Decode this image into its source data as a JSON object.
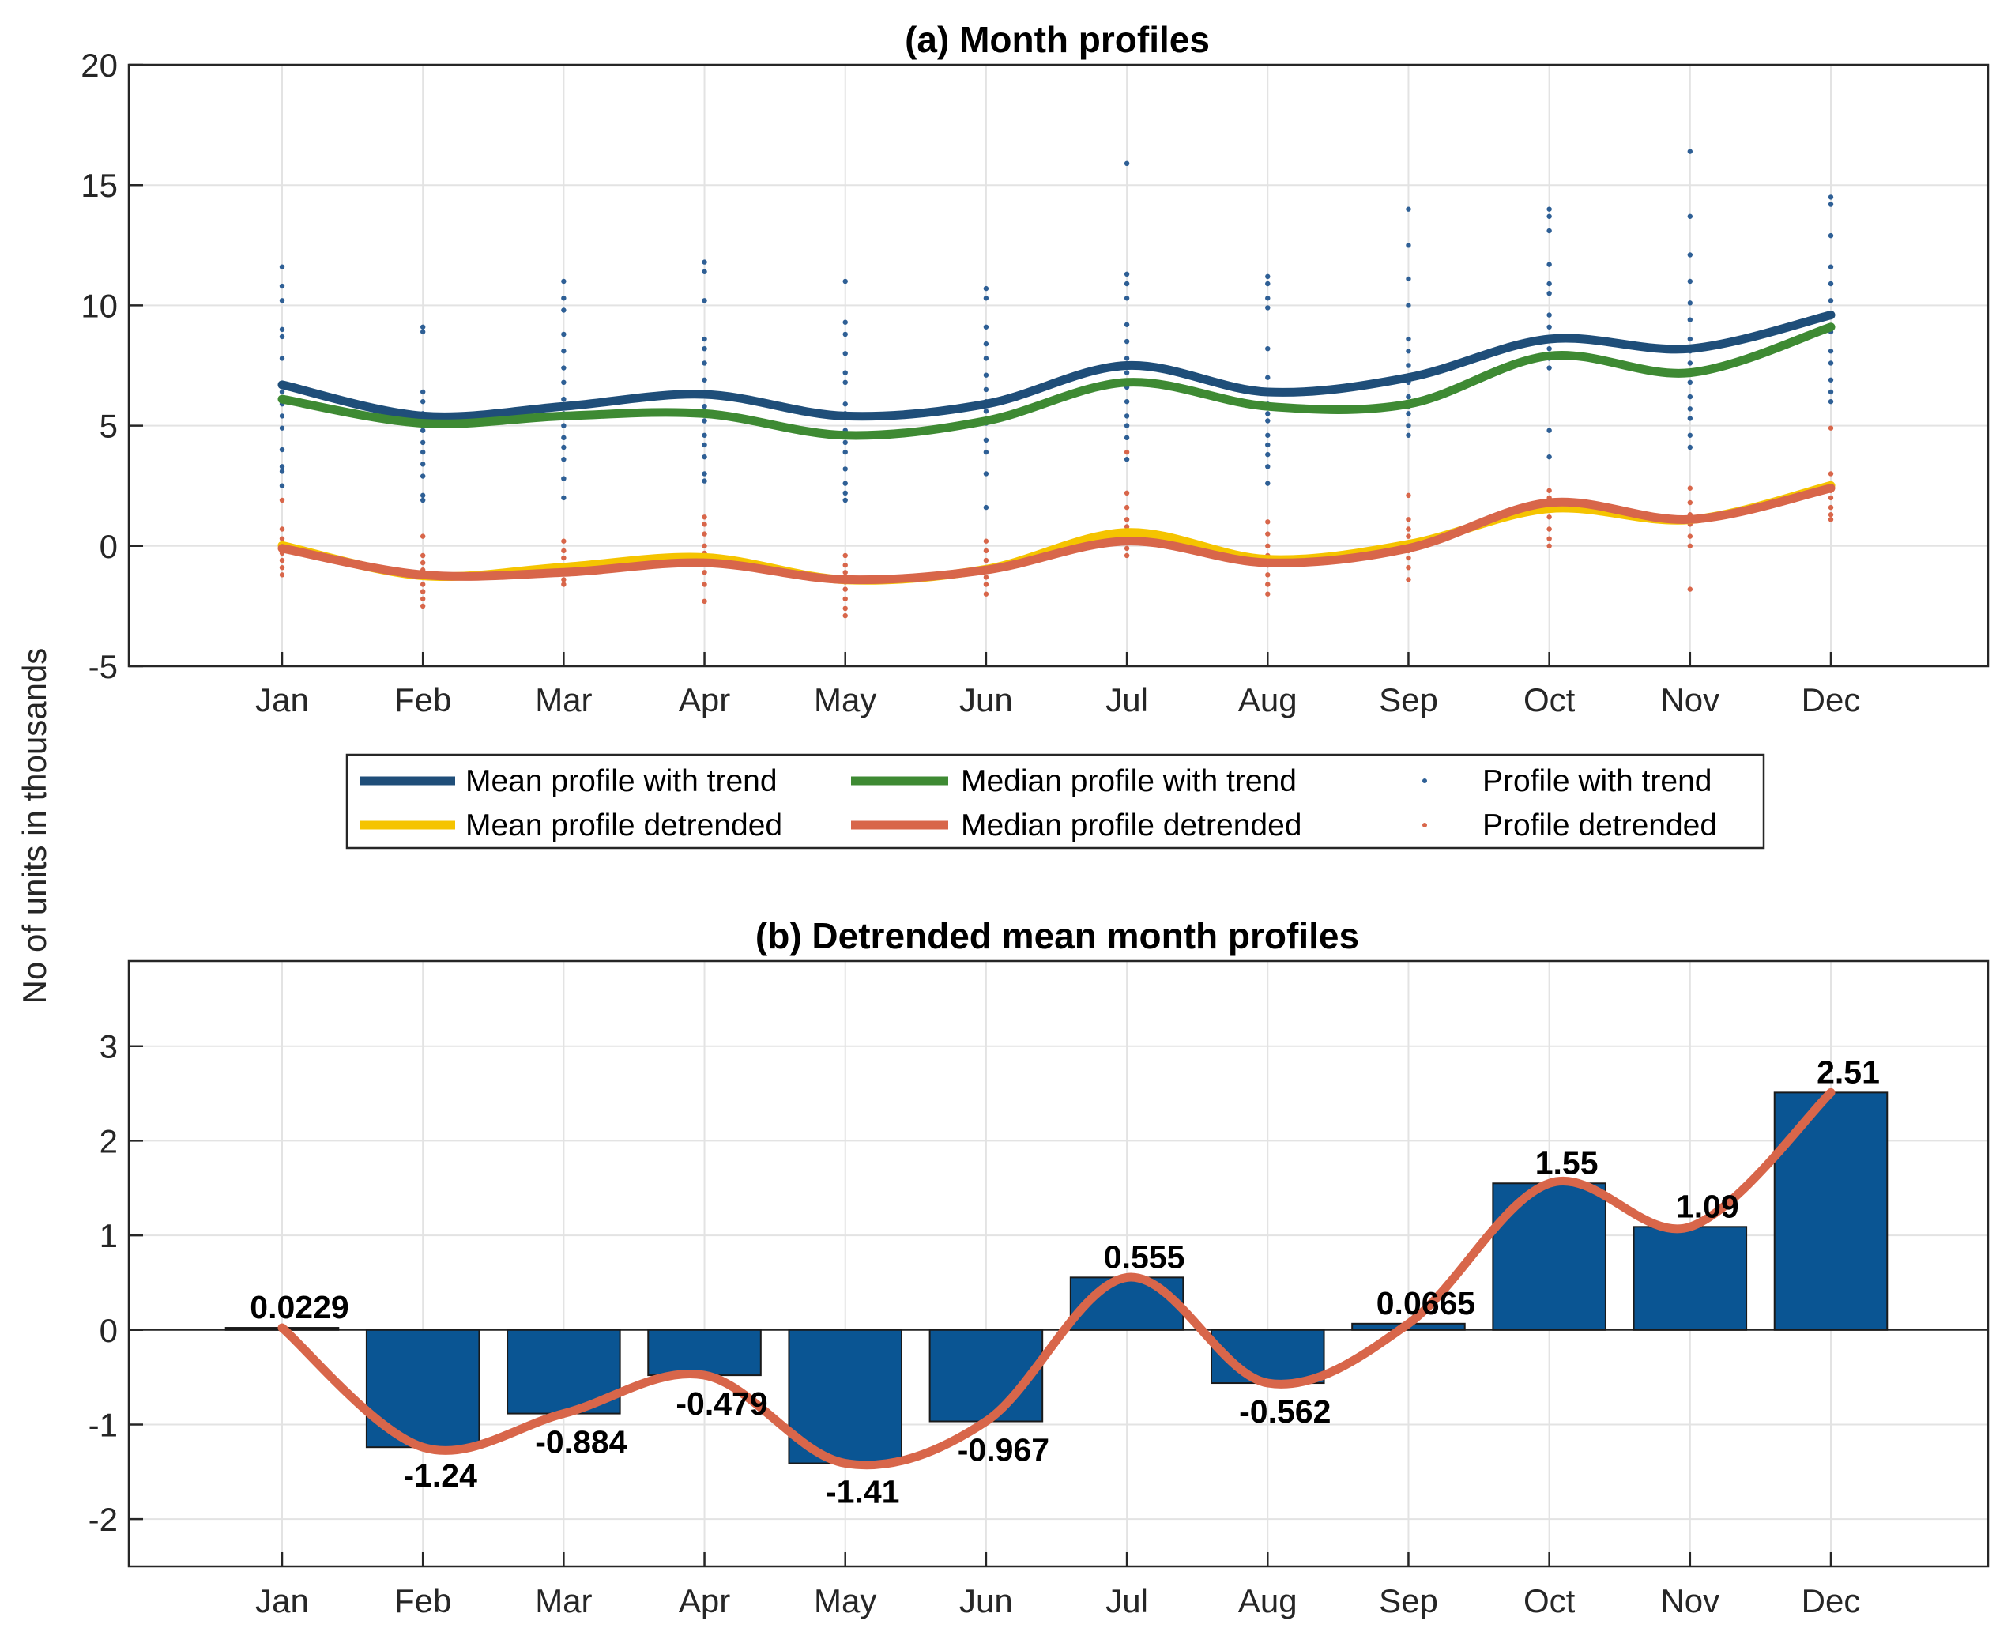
{
  "figure": {
    "ylabel": "No of units in thousands"
  },
  "colors": {
    "mean_trend": "#1f4e79",
    "median_trend": "#3e8a33",
    "mean_detrended": "#f5c400",
    "median_detrended": "#d8664a",
    "points_trend": "#2e5f95",
    "points_detrended": "#d8664a",
    "bar": "#0a5593"
  },
  "chart_data": [
    {
      "panel": "a",
      "type": "line",
      "title": "(a) Month profiles",
      "categories": [
        "Jan",
        "Feb",
        "Mar",
        "Apr",
        "May",
        "Jun",
        "Jul",
        "Aug",
        "Sep",
        "Oct",
        "Nov",
        "Dec"
      ],
      "ylim": [
        -5,
        20
      ],
      "yticks": [
        "-5",
        "0",
        "5",
        "10",
        "15",
        "20"
      ],
      "grid": true,
      "legend_position": "bottom",
      "series": [
        {
          "name": "Mean profile with trend",
          "kind": "line",
          "values": [
            6.7,
            5.4,
            5.8,
            6.3,
            5.4,
            5.9,
            7.5,
            6.4,
            7.0,
            8.6,
            8.2,
            9.6
          ]
        },
        {
          "name": "Median profile with trend",
          "kind": "line",
          "values": [
            6.1,
            5.1,
            5.4,
            5.5,
            4.6,
            5.2,
            6.8,
            5.8,
            5.9,
            7.9,
            7.2,
            9.1
          ]
        },
        {
          "name": "Profile with trend",
          "kind": "points",
          "values": [
            [
              11.6,
              10.8,
              10.2,
              9.0,
              8.7,
              7.8,
              6.4,
              5.9,
              5.4,
              4.9,
              4.0,
              3.3,
              3.1,
              2.5
            ],
            [
              9.1,
              8.9,
              6.4,
              6.0,
              5.5,
              5.1,
              4.8,
              4.3,
              3.9,
              3.4,
              2.9,
              2.1,
              1.9
            ],
            [
              11.0,
              10.3,
              9.8,
              8.8,
              8.1,
              7.4,
              6.8,
              6.1,
              5.5,
              5.0,
              4.5,
              4.1,
              3.6,
              2.8,
              2.0
            ],
            [
              11.8,
              11.4,
              10.2,
              8.6,
              8.2,
              7.6,
              6.9,
              6.3,
              5.8,
              5.2,
              4.6,
              4.2,
              3.7,
              3.0,
              2.7
            ],
            [
              11.0,
              9.3,
              8.8,
              8.0,
              7.2,
              6.8,
              5.9,
              5.5,
              4.8,
              4.3,
              3.9,
              3.2,
              2.6,
              2.2,
              1.9
            ],
            [
              10.7,
              10.3,
              9.1,
              8.4,
              7.8,
              7.1,
              6.5,
              6.0,
              5.6,
              5.1,
              4.4,
              3.9,
              3.0,
              1.6
            ],
            [
              15.9,
              11.3,
              10.9,
              10.3,
              9.2,
              8.5,
              7.8,
              7.2,
              6.6,
              6.0,
              5.4,
              5.0,
              4.5,
              3.6
            ],
            [
              11.2,
              10.9,
              10.3,
              9.9,
              8.2,
              7.0,
              6.4,
              5.9,
              5.5,
              5.2,
              4.6,
              4.2,
              3.8,
              3.3,
              2.6
            ],
            [
              14.0,
              12.5,
              11.1,
              10.0,
              8.6,
              8.1,
              7.5,
              6.8,
              6.2,
              5.8,
              5.5,
              5.0,
              4.6
            ],
            [
              14.0,
              13.7,
              13.1,
              11.7,
              10.9,
              10.5,
              9.6,
              9.1,
              8.6,
              8.2,
              7.8,
              7.4,
              4.8,
              3.7
            ],
            [
              16.4,
              13.7,
              12.1,
              11.0,
              10.1,
              9.4,
              8.6,
              8.1,
              7.6,
              6.8,
              6.2,
              5.7,
              5.3,
              4.6,
              4.1
            ],
            [
              14.5,
              14.2,
              12.9,
              11.6,
              10.9,
              10.2,
              9.6,
              8.9,
              8.1,
              7.6,
              6.9,
              6.4,
              6.0
            ]
          ]
        },
        {
          "name": "Mean profile detrended",
          "kind": "line",
          "values": [
            0.02,
            -1.24,
            -0.88,
            -0.48,
            -1.41,
            -0.97,
            0.56,
            -0.56,
            0.07,
            1.55,
            1.09,
            2.51
          ]
        },
        {
          "name": "Median profile detrended",
          "kind": "line",
          "values": [
            -0.1,
            -1.2,
            -1.1,
            -0.7,
            -1.4,
            -1.0,
            0.2,
            -0.7,
            -0.1,
            1.8,
            1.1,
            2.4
          ]
        },
        {
          "name": "Profile detrended",
          "kind": "points",
          "values": [
            [
              1.9,
              0.7,
              0.3,
              0.0,
              -0.3,
              -0.6,
              -0.9,
              -1.2
            ],
            [
              0.4,
              -0.4,
              -0.7,
              -1.0,
              -1.3,
              -1.6,
              -1.9,
              -2.2,
              -2.5
            ],
            [
              0.2,
              -0.2,
              -0.5,
              -0.9,
              -1.1,
              -1.4,
              -1.6
            ],
            [
              1.2,
              0.9,
              0.5,
              0.0,
              -0.3,
              -0.7,
              -1.1,
              -1.6,
              -2.3
            ],
            [
              -0.4,
              -0.8,
              -1.1,
              -1.5,
              -1.8,
              -2.2,
              -2.6,
              -2.9
            ],
            [
              0.2,
              -0.2,
              -0.6,
              -1.0,
              -1.3,
              -1.6,
              -2.0
            ],
            [
              3.9,
              2.2,
              1.6,
              1.1,
              0.8,
              0.5,
              0.2,
              -0.1,
              -0.4
            ],
            [
              1.0,
              0.5,
              0.0,
              -0.4,
              -0.8,
              -1.2,
              -1.6,
              -2.0
            ],
            [
              2.1,
              1.1,
              0.7,
              0.4,
              0.1,
              -0.2,
              -0.5,
              -0.9,
              -1.4
            ],
            [
              2.3,
              2.0,
              1.6,
              1.2,
              0.7,
              0.3,
              0.0
            ],
            [
              2.4,
              1.8,
              1.3,
              0.9,
              0.4,
              0.0,
              -1.8
            ],
            [
              4.9,
              3.0,
              2.6,
              2.3,
              2.0,
              1.6,
              1.3,
              1.1
            ]
          ]
        }
      ]
    },
    {
      "panel": "b",
      "type": "bar",
      "title": "(b) Detrended mean month profiles",
      "categories": [
        "Jan",
        "Feb",
        "Mar",
        "Apr",
        "May",
        "Jun",
        "Jul",
        "Aug",
        "Sep",
        "Oct",
        "Nov",
        "Dec"
      ],
      "values": [
        0.0229,
        -1.24,
        -0.884,
        -0.479,
        -1.41,
        -0.967,
        0.555,
        -0.562,
        0.0665,
        1.55,
        1.09,
        2.51
      ],
      "labels": [
        "0.0229",
        "-1.24",
        "-0.884",
        "-0.479",
        "-1.41",
        "-0.967",
        "0.555",
        "-0.562",
        "0.0665",
        "1.55",
        "1.09",
        "2.51"
      ],
      "ylim": [
        -2.5,
        3.9
      ],
      "yticks": [
        "-2",
        "-1",
        "0",
        "1",
        "2",
        "3"
      ],
      "grid": true,
      "overlay_line": "smooth curve through bar values"
    }
  ]
}
